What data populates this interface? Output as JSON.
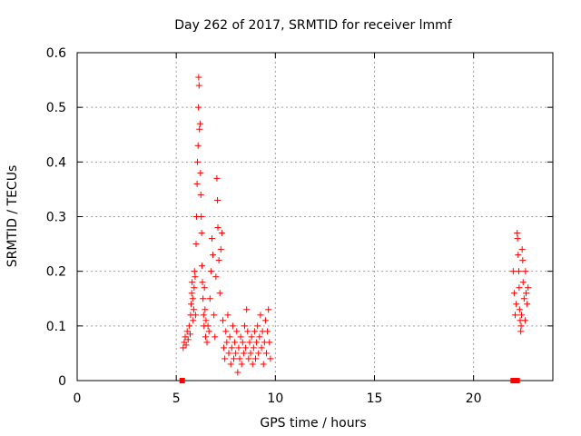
{
  "chart_data": {
    "type": "scatter",
    "title": "Day 262 of 2017, SRMTID for receiver lmmf",
    "xlabel": "GPS time / hours",
    "ylabel": "SRMTID / TECUs",
    "xlim": [
      0,
      24
    ],
    "ylim": [
      0,
      0.6
    ],
    "x_ticks": [
      0,
      5,
      10,
      15,
      20
    ],
    "y_ticks": [
      0,
      0.1,
      0.2,
      0.3,
      0.4,
      0.5,
      0.6
    ],
    "y_tick_labels": [
      "0",
      "0.1",
      "0.2",
      "0.3",
      "0.4",
      "0.5",
      "0.6"
    ],
    "grid": true,
    "marker": "+",
    "color": "#ff0000",
    "series": [
      {
        "points": [
          [
            5.35,
            0.06
          ],
          [
            5.4,
            0.07
          ],
          [
            5.45,
            0.08
          ],
          [
            5.5,
            0.065
          ],
          [
            5.55,
            0.09
          ],
          [
            5.6,
            0.075
          ],
          [
            5.65,
            0.1
          ],
          [
            5.7,
            0.085
          ],
          [
            5.72,
            0.12
          ],
          [
            5.75,
            0.14
          ],
          [
            5.78,
            0.16
          ],
          [
            5.8,
            0.18
          ],
          [
            5.83,
            0.15
          ],
          [
            5.85,
            0.11
          ],
          [
            5.88,
            0.13
          ],
          [
            5.9,
            0.17
          ],
          [
            5.92,
            0.2
          ],
          [
            5.95,
            0.19
          ],
          [
            5.97,
            0.12
          ],
          [
            6.0,
            0.25
          ],
          [
            6.02,
            0.3
          ],
          [
            6.05,
            0.36
          ],
          [
            6.07,
            0.4
          ],
          [
            6.1,
            0.43
          ],
          [
            6.12,
            0.5
          ],
          [
            6.13,
            0.555
          ],
          [
            6.15,
            0.54
          ],
          [
            6.17,
            0.46
          ],
          [
            6.2,
            0.47
          ],
          [
            6.22,
            0.38
          ],
          [
            6.24,
            0.34
          ],
          [
            6.26,
            0.3
          ],
          [
            6.28,
            0.27
          ],
          [
            6.3,
            0.21
          ],
          [
            6.32,
            0.18
          ],
          [
            6.35,
            0.15
          ],
          [
            6.38,
            0.12
          ],
          [
            6.4,
            0.1
          ],
          [
            6.42,
            0.17
          ],
          [
            6.45,
            0.13
          ],
          [
            6.48,
            0.08
          ],
          [
            6.5,
            0.11
          ],
          [
            6.55,
            0.07
          ],
          [
            6.6,
            0.1
          ],
          [
            6.65,
            0.09
          ],
          [
            6.7,
            0.15
          ],
          [
            6.75,
            0.2
          ],
          [
            6.8,
            0.26
          ],
          [
            6.85,
            0.23
          ],
          [
            6.9,
            0.12
          ],
          [
            6.95,
            0.08
          ],
          [
            7.0,
            0.19
          ],
          [
            7.05,
            0.37
          ],
          [
            7.08,
            0.33
          ],
          [
            7.1,
            0.28
          ],
          [
            7.15,
            0.22
          ],
          [
            7.2,
            0.16
          ],
          [
            7.25,
            0.24
          ],
          [
            7.3,
            0.27
          ],
          [
            7.35,
            0.11
          ],
          [
            7.4,
            0.06
          ],
          [
            7.45,
            0.04
          ],
          [
            7.5,
            0.09
          ],
          [
            7.55,
            0.07
          ],
          [
            7.6,
            0.12
          ],
          [
            7.65,
            0.05
          ],
          [
            7.7,
            0.08
          ],
          [
            7.75,
            0.03
          ],
          [
            7.8,
            0.06
          ],
          [
            7.85,
            0.1
          ],
          [
            7.9,
            0.04
          ],
          [
            7.95,
            0.07
          ],
          [
            8.0,
            0.05
          ],
          [
            8.05,
            0.09
          ],
          [
            8.1,
            0.015
          ],
          [
            8.15,
            0.06
          ],
          [
            8.2,
            0.04
          ],
          [
            8.25,
            0.08
          ],
          [
            8.3,
            0.03
          ],
          [
            8.35,
            0.07
          ],
          [
            8.4,
            0.05
          ],
          [
            8.45,
            0.1
          ],
          [
            8.5,
            0.06
          ],
          [
            8.55,
            0.13
          ],
          [
            8.6,
            0.09
          ],
          [
            8.65,
            0.04
          ],
          [
            8.7,
            0.07
          ],
          [
            8.75,
            0.05
          ],
          [
            8.8,
            0.08
          ],
          [
            8.85,
            0.03
          ],
          [
            8.9,
            0.06
          ],
          [
            8.95,
            0.09
          ],
          [
            9.0,
            0.04
          ],
          [
            9.05,
            0.07
          ],
          [
            9.1,
            0.1
          ],
          [
            9.15,
            0.05
          ],
          [
            9.2,
            0.08
          ],
          [
            9.25,
            0.12
          ],
          [
            9.3,
            0.06
          ],
          [
            9.35,
            0.09
          ],
          [
            9.4,
            0.03
          ],
          [
            9.45,
            0.07
          ],
          [
            9.5,
            0.11
          ],
          [
            9.55,
            0.05
          ],
          [
            9.6,
            0.09
          ],
          [
            9.65,
            0.13
          ],
          [
            9.7,
            0.07
          ],
          [
            9.75,
            0.04
          ],
          [
            22.0,
            0.2
          ],
          [
            22.05,
            0.16
          ],
          [
            22.1,
            0.12
          ],
          [
            22.15,
            0.14
          ],
          [
            22.2,
            0.27
          ],
          [
            22.22,
            0.26
          ],
          [
            22.25,
            0.23
          ],
          [
            22.28,
            0.2
          ],
          [
            22.3,
            0.17
          ],
          [
            22.32,
            0.13
          ],
          [
            22.35,
            0.11
          ],
          [
            22.38,
            0.09
          ],
          [
            22.4,
            0.1
          ],
          [
            22.42,
            0.12
          ],
          [
            22.45,
            0.24
          ],
          [
            22.48,
            0.22
          ],
          [
            22.5,
            0.18
          ],
          [
            22.55,
            0.15
          ],
          [
            22.6,
            0.11
          ],
          [
            22.62,
            0.2
          ],
          [
            22.65,
            0.16
          ],
          [
            22.7,
            0.14
          ],
          [
            22.75,
            0.17
          ]
        ]
      },
      {
        "marker": "square",
        "points": [
          [
            5.3,
            0
          ],
          [
            22.0,
            0
          ],
          [
            22.1,
            0
          ],
          [
            22.2,
            0
          ]
        ]
      }
    ]
  }
}
